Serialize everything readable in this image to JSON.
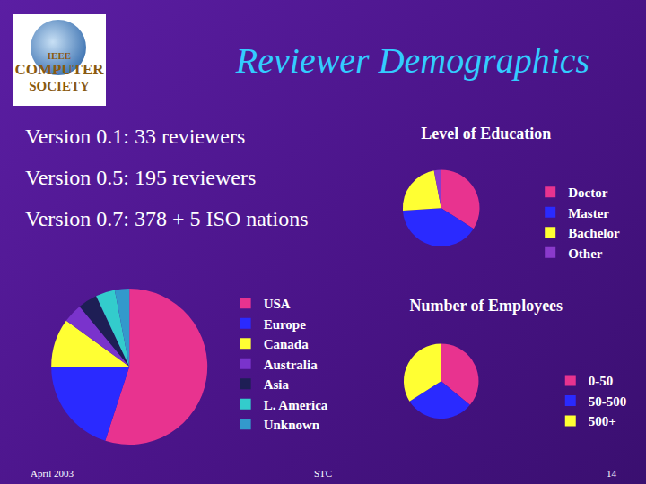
{
  "slide": {
    "title": "Reviewer Demographics",
    "logo": [
      "IEEE",
      "COMPUTER",
      "SOCIETY"
    ],
    "lines": [
      "Version 0.1: 33 reviewers",
      "Version 0.5: 195 reviewers",
      "Version 0.7: 378 + 5 ISO nations"
    ],
    "footer": {
      "left": "April 2003",
      "center": "STC",
      "right": "14"
    }
  },
  "chart_data": [
    {
      "type": "pie",
      "title": "Level of Education",
      "categories": [
        "Doctor",
        "Master",
        "Bachelor",
        "Other"
      ],
      "values": [
        34,
        40,
        23,
        3
      ],
      "colors": [
        "#e8338f",
        "#2a2aff",
        "#ffff33",
        "#8a3acc"
      ],
      "legend": "right"
    },
    {
      "type": "pie",
      "categories": [
        "USA",
        "Europe",
        "Canada",
        "Australia",
        "Asia",
        "L. America",
        "Unknown"
      ],
      "values": [
        55,
        20,
        10,
        4,
        4,
        4,
        3
      ],
      "colors": [
        "#e8338f",
        "#2a2aff",
        "#ffff33",
        "#7a33cc",
        "#1e1e55",
        "#33cccc",
        "#3399cc"
      ],
      "legend": "right"
    },
    {
      "type": "pie",
      "title": "Number of Employees",
      "categories": [
        "0-50",
        "50-500",
        "500+"
      ],
      "values": [
        36,
        30,
        34
      ],
      "colors": [
        "#e8338f",
        "#2a2aff",
        "#ffff33"
      ],
      "legend": "right"
    }
  ]
}
